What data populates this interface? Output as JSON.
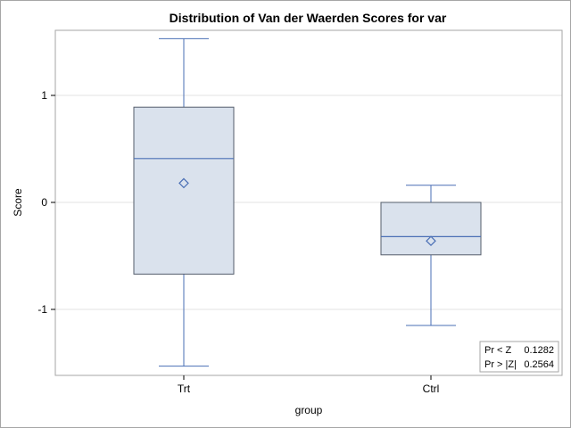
{
  "chart_data": {
    "type": "box",
    "title": "Distribution of Van der Waerden Scores for var",
    "xlabel": "group",
    "ylabel": "Score",
    "categories": [
      "Trt",
      "Ctrl"
    ],
    "ylim": [
      -1.6,
      1.6
    ],
    "yticks": [
      1,
      0,
      -1
    ],
    "ytick_labels": [
      "1",
      "0",
      "-1"
    ],
    "grid": true,
    "boxes": [
      {
        "category": "Trt",
        "min": -1.53,
        "q1": -0.67,
        "median": 0.41,
        "q3": 0.89,
        "max": 1.53,
        "mean": 0.18
      },
      {
        "category": "Ctrl",
        "min": -1.15,
        "q1": -0.49,
        "median": -0.32,
        "q3": 0.0,
        "max": 0.16,
        "mean": -0.36
      }
    ],
    "colors": {
      "box_fill": "#dae2ed",
      "box_stroke": "#545d6b",
      "whisker": "#4a6fb5",
      "grid": "#e3e3e3"
    },
    "inset": [
      {
        "label": "Pr < Z",
        "value": "0.1282"
      },
      {
        "label": "Pr > |Z|",
        "value": "0.2564"
      }
    ]
  }
}
